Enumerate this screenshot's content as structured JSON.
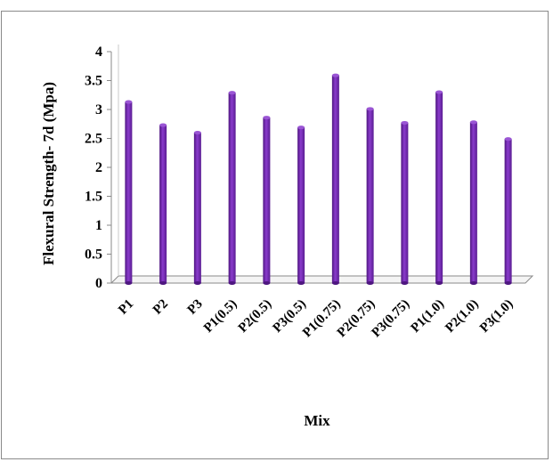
{
  "chart_data": {
    "type": "bar",
    "categories": [
      "P1",
      "P2",
      "P3",
      "P1(0.5)",
      "P2(0.5)",
      "P3(0.5)",
      "P1(0.75)",
      "P2(0.75)",
      "P3(0.75)",
      "P1(1.0)",
      "P2(1.0)",
      "P3(1.0)"
    ],
    "values": [
      3.13,
      2.73,
      2.6,
      3.29,
      2.86,
      2.69,
      3.59,
      3.01,
      2.77,
      3.3,
      2.78,
      2.49
    ],
    "title": "",
    "xlabel": "Mix",
    "ylabel": "Flexural Strength- 7d (Mpa)",
    "ylim": [
      0,
      4
    ],
    "yticks": [
      "0",
      "0.5",
      "1",
      "1.5",
      "2",
      "2.5",
      "3",
      "3.5",
      "4"
    ],
    "grid": false,
    "bar_color": "#7a2ab8",
    "bar_color_dark": "#4e1680",
    "bar_color_light": "#9a55d4"
  }
}
